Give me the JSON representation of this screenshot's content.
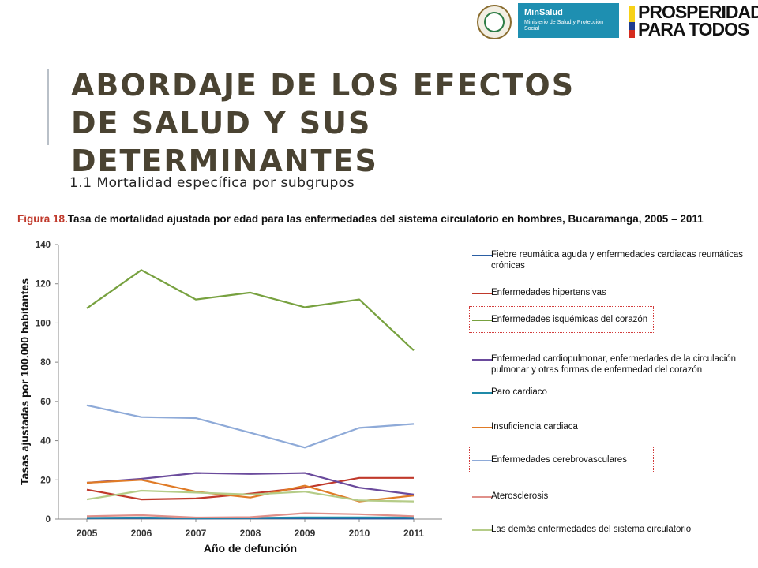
{
  "header": {
    "minsalud_name": "MinSalud",
    "minsalud_sub": "Ministerio de Salud y Protección Social",
    "prosperidad_line1": "PROSPERIDAD",
    "prosperidad_line2": "PARA TODOS",
    "flag_colors": [
      "#f7d117",
      "#1e3b8f",
      "#d52b1e"
    ]
  },
  "slide": {
    "title": "ABORDAJE DE LOS EFECTOS DE SALUD Y SUS DETERMINANTES",
    "subtitle": "1.1 Mortalidad específica por subgrupos"
  },
  "figure": {
    "label": "Figura 18.",
    "caption": "Tasa de mortalidad ajustada por edad para las enfermedades del sistema circulatorio en hombres, Bucaramanga, 2005 – 2011"
  },
  "chart_data": {
    "type": "line",
    "title": "Figura 18.Tasa de mortalidad ajustada por edad para las enfermedades del sistema circulatorio en hombres, Bucaramanga, 2005 – 2011",
    "xlabel": "Año de defunción",
    "ylabel": "Tasas ajustadas por 100.000 habitantes",
    "x": [
      "2005",
      "2006",
      "2007",
      "2008",
      "2009",
      "2010",
      "2011"
    ],
    "ylim": [
      0,
      140
    ],
    "yticks": [
      "0",
      "20",
      "40",
      "60",
      "80",
      "100",
      "120",
      "140"
    ],
    "grid": false,
    "legend_position": "right",
    "series": [
      {
        "name": "Fiebre reumática aguda y enfermedades cardiacas reumáticas crónicas",
        "color": "#2b5fa4",
        "values": [
          0.4,
          0.5,
          0.3,
          0.4,
          0.4,
          0.3,
          0.3
        ],
        "highlight": false
      },
      {
        "name": "Enfermedades hipertensivas",
        "color": "#c0392b",
        "values": [
          15,
          10,
          10.5,
          13,
          16,
          21,
          21
        ],
        "highlight": false
      },
      {
        "name": "Enfermedades isquémicas del corazón",
        "color": "#77a13f",
        "values": [
          107.5,
          127,
          112,
          115.5,
          108,
          112,
          86
        ],
        "highlight": true
      },
      {
        "name": "Enfermedad cardiopulmonar, enfermedades de la circulación pulmonar y otras formas de enfermedad del corazón",
        "color": "#6a4a9c",
        "values": [
          18.5,
          20.5,
          23.5,
          23,
          23.5,
          16,
          12.5
        ],
        "highlight": false
      },
      {
        "name": "Paro cardiaco",
        "color": "#1f8aa8",
        "values": [
          0.6,
          0.8,
          0.5,
          0.6,
          0.9,
          0.9,
          0.8
        ],
        "highlight": false
      },
      {
        "name": "Insuficiencia cardiaca",
        "color": "#e07b27",
        "values": [
          18.5,
          20,
          14,
          11,
          17,
          9,
          12
        ],
        "highlight": false
      },
      {
        "name": "Enfermedades cerebrovasculares",
        "color": "#8eaad8",
        "values": [
          58,
          52,
          51.5,
          44,
          36.5,
          46.5,
          48.5
        ],
        "highlight": true
      },
      {
        "name": "Aterosclerosis",
        "color": "#e0908a",
        "values": [
          1.5,
          2,
          0.8,
          1,
          3,
          2.5,
          1.5
        ],
        "highlight": false
      },
      {
        "name": "Las demás enfermedades del sistema circulatorio",
        "color": "#b5cc88",
        "values": [
          10,
          14.5,
          13.5,
          12.5,
          14,
          9.5,
          9
        ],
        "highlight": false
      }
    ]
  }
}
